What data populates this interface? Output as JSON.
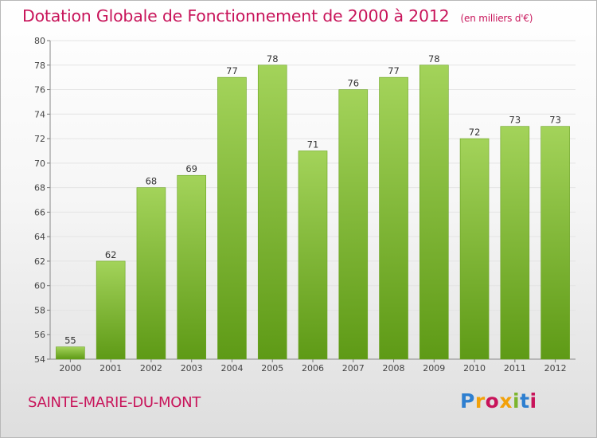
{
  "header": {
    "title": "Dotation Globale de Fonctionnement de 2000 à 2012",
    "unit_note": "(en milliers d'€)"
  },
  "footer": {
    "place_name": "SAINTE-MARIE-DU-MONT",
    "logo_letters": [
      "P",
      "r",
      "o",
      "x",
      "i",
      "t",
      "i"
    ]
  },
  "colors": {
    "title": "#c8145a",
    "bar_top": "#a3d35a",
    "bar_bottom": "#5e9a16",
    "gridline": "#e4e4e4"
  },
  "chart_data": {
    "type": "bar",
    "categories": [
      "2000",
      "2001",
      "2002",
      "2003",
      "2004",
      "2005",
      "2006",
      "2007",
      "2008",
      "2009",
      "2010",
      "2011",
      "2012"
    ],
    "values": [
      55,
      62,
      68,
      69,
      77,
      78,
      71,
      76,
      77,
      78,
      72,
      73,
      73
    ],
    "ylim": [
      54,
      80
    ],
    "yticks": [
      54,
      56,
      58,
      60,
      62,
      64,
      66,
      68,
      70,
      72,
      74,
      76,
      78,
      80
    ],
    "grid": true,
    "data_labels": true
  }
}
